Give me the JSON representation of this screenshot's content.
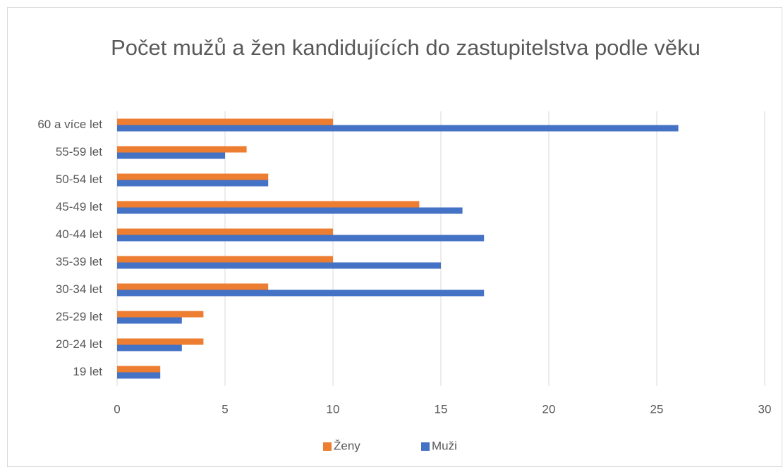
{
  "chart_data": {
    "type": "hbar",
    "title": "Počet mužů a žen kandidujících do zastupitelstva podle věku",
    "categories": [
      "19 let",
      "20-24 let",
      "25-29 let",
      "30-34 let",
      "35-39 let",
      "40-44 let",
      "45-49 let",
      "50-54 let",
      "55-59 let",
      "60 a více let"
    ],
    "series": [
      {
        "name": "Ženy",
        "color": "#ed7d31",
        "values": [
          2,
          4,
          4,
          7,
          10,
          10,
          14,
          7,
          6,
          10
        ]
      },
      {
        "name": "Muži",
        "color": "#4472c4",
        "values": [
          2,
          3,
          3,
          17,
          15,
          17,
          16,
          7,
          5,
          26
        ]
      }
    ],
    "xlim": [
      0,
      30
    ],
    "xticks": [
      0,
      5,
      10,
      15,
      20,
      25,
      30
    ],
    "grid": true,
    "legend": "bottom"
  }
}
